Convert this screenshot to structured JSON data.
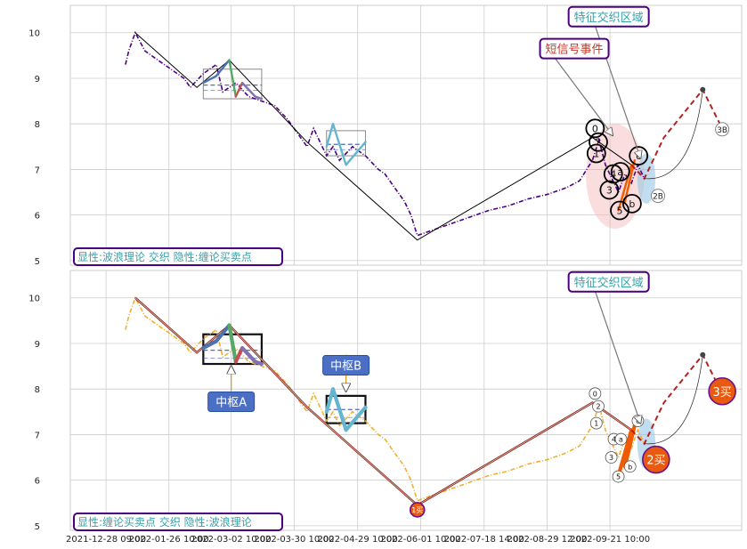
{
  "chart_data": [
    {
      "type": "line",
      "panel": "top",
      "ylim": [
        4.9,
        10.6
      ],
      "yticks": [
        5,
        6,
        7,
        8,
        9,
        10
      ],
      "grid": true,
      "price_series": {
        "style": "dash-dot",
        "color": "#4b0082",
        "points": [
          [
            0.0,
            9.3
          ],
          [
            0.5,
            9.6
          ],
          [
            1.5,
            10.0
          ],
          [
            3,
            9.6
          ],
          [
            5,
            9.4
          ],
          [
            7,
            9.2
          ],
          [
            9,
            9.0
          ],
          [
            10,
            8.8
          ],
          [
            12,
            9.1
          ],
          [
            14,
            9.3
          ],
          [
            15,
            8.7
          ],
          [
            17,
            8.9
          ],
          [
            19,
            8.6
          ],
          [
            21,
            8.5
          ],
          [
            23,
            8.4
          ],
          [
            25,
            8.1
          ],
          [
            27,
            7.7
          ],
          [
            28,
            7.5
          ],
          [
            29,
            7.9
          ],
          [
            30,
            7.6
          ],
          [
            31,
            7.3
          ],
          [
            32,
            7.5
          ],
          [
            33,
            7.2
          ],
          [
            35,
            7.5
          ],
          [
            37,
            7.3
          ],
          [
            39,
            7.0
          ],
          [
            40,
            6.9
          ],
          [
            41,
            6.7
          ],
          [
            43,
            6.3
          ],
          [
            44,
            6.0
          ],
          [
            45,
            5.55
          ],
          [
            46,
            5.6
          ],
          [
            48,
            5.7
          ],
          [
            50,
            5.8
          ],
          [
            53,
            5.95
          ],
          [
            56,
            6.1
          ],
          [
            59,
            6.2
          ],
          [
            62,
            6.35
          ],
          [
            65,
            6.45
          ],
          [
            68,
            6.6
          ],
          [
            70,
            6.75
          ],
          [
            72,
            7.2
          ],
          [
            73,
            7.65
          ],
          [
            74,
            7.1
          ],
          [
            75,
            6.8
          ],
          [
            76,
            6.5
          ],
          [
            77,
            6.9
          ],
          [
            78,
            6.7
          ],
          [
            79,
            7.1
          ],
          [
            80,
            6.8
          ]
        ]
      },
      "wave_line": {
        "color": "#000000",
        "points": [
          [
            1.5,
            10.0
          ],
          [
            11,
            8.8
          ],
          [
            16,
            9.4
          ],
          [
            28,
            7.6
          ],
          [
            45,
            5.45
          ],
          [
            72,
            7.7
          ],
          [
            78,
            7.1
          ]
        ]
      },
      "pivots": [
        {
          "x0": 12,
          "x1": 21,
          "y0": 8.55,
          "y1": 9.2,
          "mid": 8.85
        },
        {
          "x0": 31,
          "x1": 37,
          "y0": 7.3,
          "y1": 7.85,
          "mid": 7.55
        }
      ],
      "colored_segments": [
        {
          "color": "#4c72b0",
          "points": [
            [
              12,
              8.9
            ],
            [
              14,
              9.05
            ],
            [
              16,
              9.4
            ]
          ]
        },
        {
          "color": "#55a868",
          "points": [
            [
              16,
              9.4
            ],
            [
              17,
              8.6
            ]
          ]
        },
        {
          "color": "#c44e52",
          "points": [
            [
              17,
              8.6
            ],
            [
              18,
              8.9
            ]
          ]
        },
        {
          "color": "#8172b2",
          "points": [
            [
              18,
              8.9
            ],
            [
              20,
              8.6
            ],
            [
              21,
              8.55
            ]
          ]
        },
        {
          "color": "#64b5cd",
          "points": [
            [
              31,
              7.5
            ],
            [
              32,
              8.0
            ],
            [
              34,
              7.1
            ],
            [
              37,
              7.6
            ]
          ]
        },
        {
          "color": "#f05a00",
          "points": [
            [
              76,
              6.1
            ],
            [
              78,
              7.1
            ]
          ]
        },
        {
          "color": "#f05a00",
          "points": [
            [
              77,
              6.3
            ],
            [
              78.5,
              7.2
            ]
          ]
        }
      ],
      "projection": {
        "color": "#b22222",
        "points": [
          [
            78,
            7.1
          ],
          [
            80,
            6.8
          ],
          [
            83,
            7.7
          ],
          [
            89,
            8.75
          ],
          [
            92,
            7.9
          ]
        ]
      },
      "arc": {
        "from": [
          80,
          6.8
        ],
        "to": [
          89,
          8.75
        ]
      },
      "event_region": {
        "cx": 75.5,
        "cy": 6.85,
        "rx": 4.5,
        "ry": 1.15,
        "color": "#f4b6b6"
      },
      "small_region": {
        "cx": 80.3,
        "cy": 6.8,
        "rx": 1.4,
        "ry": 0.55,
        "color": "#9ac6e6"
      },
      "wave_markers": [
        {
          "label": "0",
          "x": 72.4,
          "y": 7.9
        },
        {
          "label": "1",
          "x": 72.6,
          "y": 7.35
        },
        {
          "label": "2",
          "x": 72.9,
          "y": 7.6
        },
        {
          "label": "3",
          "x": 74.6,
          "y": 6.55
        },
        {
          "label": "4",
          "x": 75.2,
          "y": 6.9
        },
        {
          "label": "a",
          "x": 76.3,
          "y": 6.95
        },
        {
          "label": "5",
          "x": 76.2,
          "y": 6.1
        },
        {
          "label": "b",
          "x": 78.1,
          "y": 6.25
        },
        {
          "label": "c",
          "x": 79.1,
          "y": 7.3
        }
      ],
      "point_labels": [
        {
          "label": "2B",
          "x": 82.1,
          "y": 6.42
        },
        {
          "label": "3B",
          "x": 92.0,
          "y": 7.88
        }
      ],
      "annotations": [
        {
          "text": "特征交织区域",
          "box_x": 74.5,
          "box_y": 10.35,
          "arrow_to": [
            79.4,
            7.25
          ],
          "text_color": "#3aa0a8"
        },
        {
          "text": "短信号事件",
          "box_x": 69.2,
          "box_y": 9.65,
          "arrow_to": [
            75.1,
            7.75
          ],
          "text_color": "#c0392b"
        }
      ],
      "legend_label": "显性:波浪理论 交织 隐性:缠论买卖点"
    },
    {
      "type": "line",
      "panel": "bottom",
      "ylim": [
        4.9,
        10.6
      ],
      "yticks": [
        5,
        6,
        7,
        8,
        9,
        10
      ],
      "grid": true,
      "price_series": {
        "style": "dash-dot",
        "color": "#f0b030",
        "points": [
          [
            0.0,
            9.3
          ],
          [
            0.5,
            9.6
          ],
          [
            1.5,
            10.0
          ],
          [
            3,
            9.6
          ],
          [
            5,
            9.4
          ],
          [
            7,
            9.2
          ],
          [
            9,
            9.0
          ],
          [
            10,
            8.8
          ],
          [
            12,
            9.1
          ],
          [
            14,
            9.3
          ],
          [
            15,
            8.7
          ],
          [
            17,
            8.9
          ],
          [
            19,
            8.6
          ],
          [
            21,
            8.5
          ],
          [
            23,
            8.4
          ],
          [
            25,
            8.1
          ],
          [
            27,
            7.7
          ],
          [
            28,
            7.5
          ],
          [
            29,
            7.9
          ],
          [
            30,
            7.6
          ],
          [
            31,
            7.3
          ],
          [
            32,
            7.5
          ],
          [
            33,
            7.2
          ],
          [
            35,
            7.5
          ],
          [
            37,
            7.3
          ],
          [
            39,
            7.0
          ],
          [
            40,
            6.9
          ],
          [
            41,
            6.7
          ],
          [
            43,
            6.3
          ],
          [
            44,
            6.0
          ],
          [
            45,
            5.55
          ],
          [
            46,
            5.6
          ],
          [
            48,
            5.7
          ],
          [
            50,
            5.8
          ],
          [
            53,
            5.95
          ],
          [
            56,
            6.1
          ],
          [
            59,
            6.2
          ],
          [
            62,
            6.35
          ],
          [
            65,
            6.45
          ],
          [
            68,
            6.6
          ],
          [
            70,
            6.75
          ],
          [
            72,
            7.2
          ],
          [
            73,
            7.65
          ],
          [
            74,
            7.1
          ],
          [
            75,
            6.8
          ],
          [
            76,
            6.5
          ],
          [
            77,
            6.9
          ],
          [
            78,
            6.7
          ],
          [
            79,
            7.1
          ],
          [
            80,
            6.8
          ]
        ]
      },
      "wave_line": {
        "color": "#8b1a1a",
        "points": [
          [
            1.5,
            10.0
          ],
          [
            11,
            8.8
          ],
          [
            16,
            9.4
          ],
          [
            28,
            7.6
          ],
          [
            45,
            5.45
          ],
          [
            72,
            7.7
          ],
          [
            78,
            7.1
          ]
        ]
      },
      "pivots": [
        {
          "x0": 12,
          "x1": 21,
          "y0": 8.55,
          "y1": 9.2,
          "mid": 8.85,
          "label": "中枢A",
          "label_x": 16.3,
          "label_y": 7.72,
          "arrow_to": [
            16.3,
            8.5
          ]
        },
        {
          "x0": 31,
          "x1": 37,
          "y0": 7.25,
          "y1": 7.85,
          "mid": 7.55,
          "label": "中枢B",
          "label_x": 34.0,
          "label_y": 8.52,
          "arrow_to": [
            34.0,
            7.95
          ]
        }
      ],
      "colored_segments": [
        {
          "color": "#4c72b0",
          "points": [
            [
              12,
              8.9
            ],
            [
              14,
              9.05
            ],
            [
              16,
              9.4
            ]
          ]
        },
        {
          "color": "#55a868",
          "points": [
            [
              16,
              9.4
            ],
            [
              17,
              8.6
            ]
          ]
        },
        {
          "color": "#c44e52",
          "points": [
            [
              17,
              8.6
            ],
            [
              18,
              8.9
            ]
          ]
        },
        {
          "color": "#8172b2",
          "points": [
            [
              18,
              8.9
            ],
            [
              20,
              8.6
            ],
            [
              21,
              8.55
            ]
          ]
        },
        {
          "color": "#64b5cd",
          "points": [
            [
              31,
              7.5
            ],
            [
              32,
              8.0
            ],
            [
              34,
              7.1
            ],
            [
              37,
              7.6
            ]
          ]
        },
        {
          "color": "#f05a00",
          "points": [
            [
              76,
              6.1
            ],
            [
              78,
              7.1
            ]
          ]
        },
        {
          "color": "#f05a00",
          "points": [
            [
              77,
              6.3
            ],
            [
              78.5,
              7.2
            ]
          ]
        }
      ],
      "projection": {
        "color": "#b22222",
        "points": [
          [
            78,
            7.1
          ],
          [
            80,
            6.8
          ],
          [
            83,
            7.7
          ],
          [
            89,
            8.75
          ],
          [
            92,
            7.9
          ]
        ]
      },
      "arc": {
        "from": [
          80,
          6.8
        ],
        "to": [
          89,
          8.75
        ]
      },
      "small_region": {
        "cx": 80.3,
        "cy": 6.8,
        "rx": 1.4,
        "ry": 0.55,
        "color": "#9ac6e6"
      },
      "wave_markers": [
        {
          "label": "0",
          "x": 72.4,
          "y": 7.9
        },
        {
          "label": "2",
          "x": 72.9,
          "y": 7.62
        },
        {
          "label": "1",
          "x": 72.6,
          "y": 7.25
        },
        {
          "label": "4",
          "x": 75.3,
          "y": 6.9
        },
        {
          "label": "a",
          "x": 76.4,
          "y": 6.9
        },
        {
          "label": "3",
          "x": 74.9,
          "y": 6.5
        },
        {
          "label": "b",
          "x": 77.8,
          "y": 6.3
        },
        {
          "label": "5",
          "x": 76.0,
          "y": 6.08
        },
        {
          "label": "c",
          "x": 79.0,
          "y": 7.3
        }
      ],
      "buy_points": [
        {
          "label": "1买",
          "x": 45.0,
          "y": 5.35
        },
        {
          "label": "2买",
          "x": 81.8,
          "y": 6.45
        },
        {
          "label": "3买",
          "x": 92.0,
          "y": 7.95
        }
      ],
      "annotations": [
        {
          "text": "特征交织区域",
          "box_x": 74.5,
          "box_y": 10.35,
          "arrow_to": [
            79.4,
            7.25
          ],
          "text_color": "#3aa0a8"
        }
      ],
      "legend_label": "显性:缠论买卖点 交织 隐性:波浪理论"
    }
  ],
  "x_axis": {
    "xlim": [
      -8.5,
      95
    ],
    "ticks": [
      {
        "x": -3.0,
        "label": "2021-12-28 09:00"
      },
      {
        "x": 6.7,
        "label": "2022-01-26 10:00"
      },
      {
        "x": 16.3,
        "label": "2022-03-02 10:00"
      },
      {
        "x": 26.0,
        "label": "2022-03-30 10:00"
      },
      {
        "x": 35.8,
        "label": "2022-04-29 10:00"
      },
      {
        "x": 45.5,
        "label": "2022-06-01 10:00"
      },
      {
        "x": 55.3,
        "label": "2022-07-18 14:00"
      },
      {
        "x": 65.0,
        "label": "2022-08-29 12:00"
      },
      {
        "x": 74.7,
        "label": "2022-09-21 10:00"
      }
    ]
  },
  "colors": {
    "grid": "#cccccc",
    "axes_edge": "#cccccc",
    "label_box_edge": "#4b0082",
    "label_text": "#3aa0a8",
    "pivot_blue": "#4a6fc4",
    "buy_fill": "#e85a10",
    "buy_edge": "#6b0f8a"
  }
}
